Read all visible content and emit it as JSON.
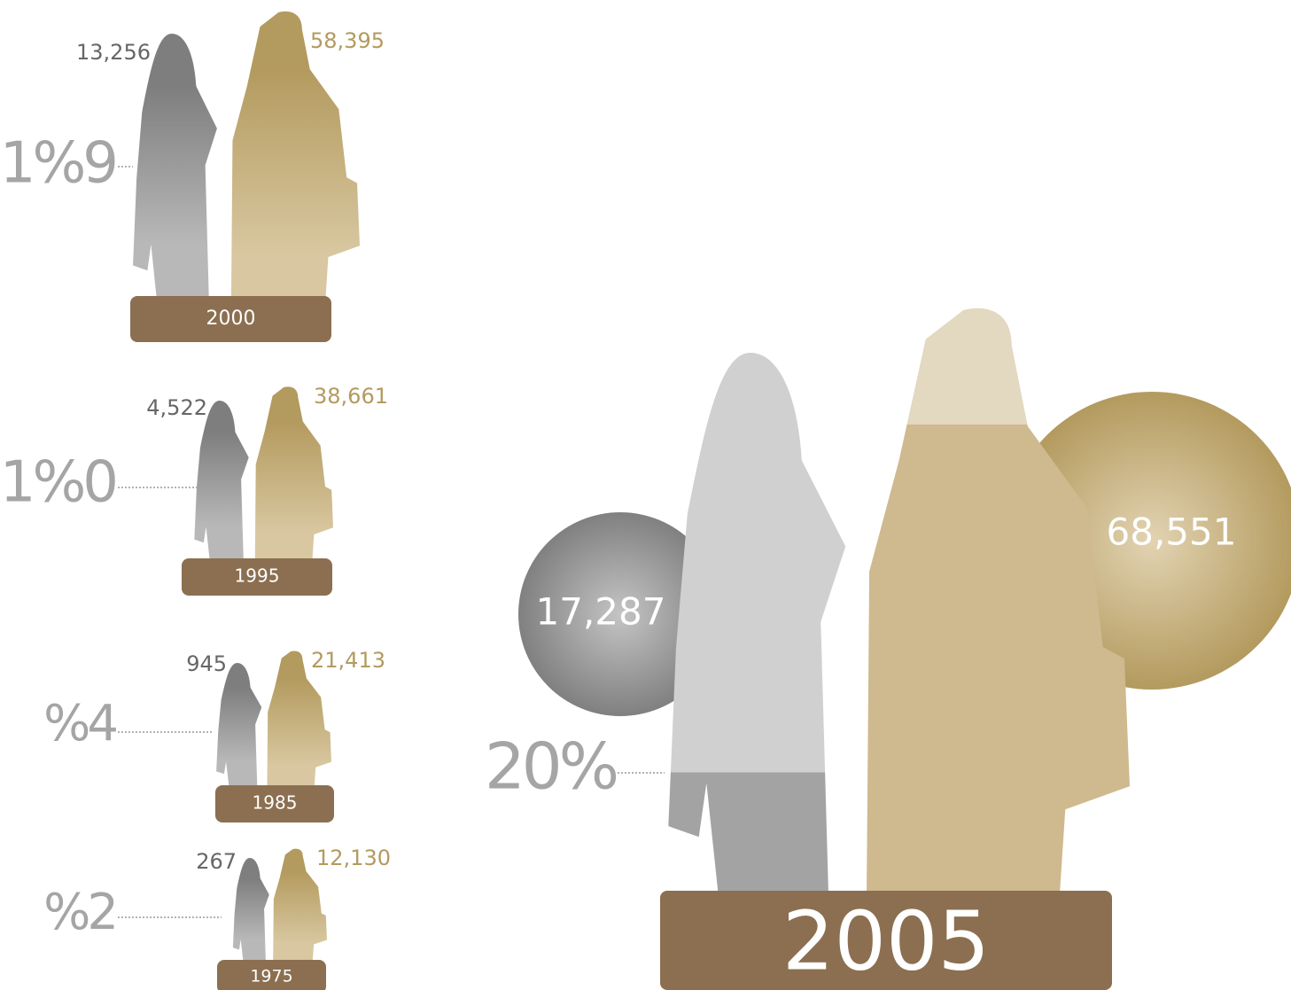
{
  "panels": [
    {
      "year": "2000",
      "female": "13,256",
      "male": "58,395",
      "percent": "1%9"
    },
    {
      "year": "1995",
      "female": "4,522",
      "male": "38,661",
      "percent": "1%0"
    },
    {
      "year": "1985",
      "female": "945",
      "male": "21,413",
      "percent": "%4"
    },
    {
      "year": "1975",
      "female": "267",
      "male": "12,130",
      "percent": "%2"
    }
  ],
  "highlight": {
    "year": "2005",
    "female": "17,287",
    "male": "68,551",
    "percent": "20%"
  }
}
